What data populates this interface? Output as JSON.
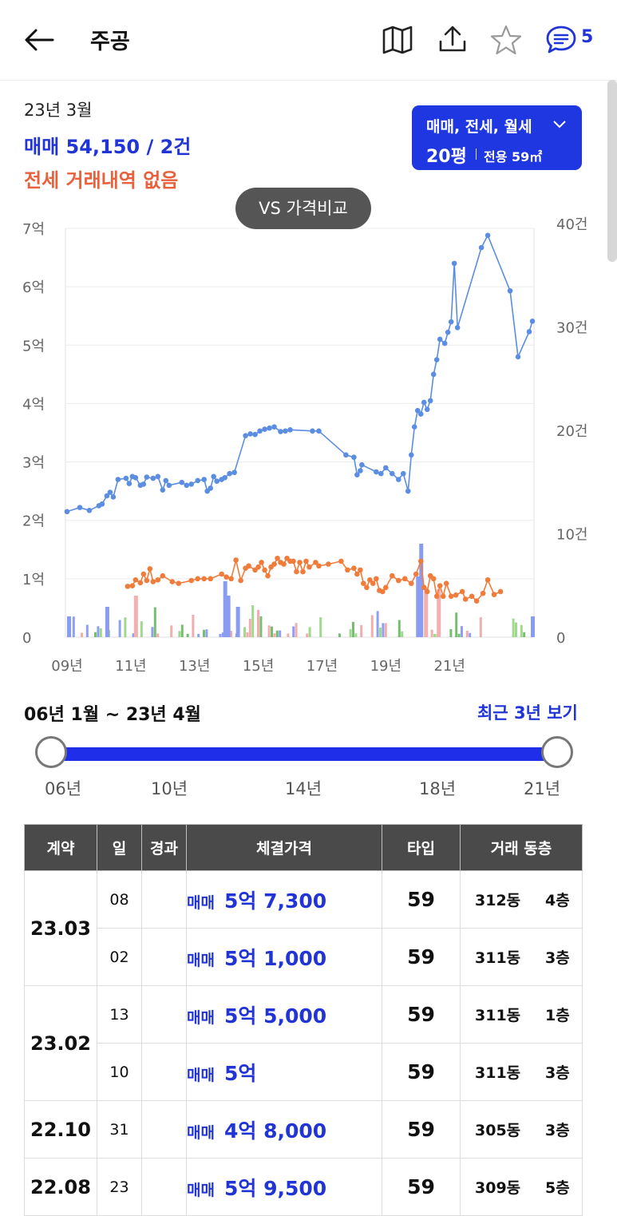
{
  "header": {
    "title": "주공",
    "comment_count": "5",
    "icons": [
      "back-arrow-icon",
      "map-icon",
      "share-icon",
      "star-icon",
      "chat-icon"
    ]
  },
  "summary": {
    "date": "23년 3월",
    "sale": "매매 54,150 / 2건",
    "jeonse": "전세 거래내역 없음"
  },
  "filter": {
    "deal_types": "매매, 전세, 월세",
    "size": "20평",
    "area": "전용 59㎡"
  },
  "vs_button": "VS 가격비교",
  "chart_data": {
    "type": "line",
    "x_ticks": [
      "09년",
      "11년",
      "13년",
      "15년",
      "17년",
      "19년",
      "21년"
    ],
    "y_left_ticks": [
      "0",
      "1억",
      "2억",
      "3억",
      "4억",
      "5억",
      "6억",
      "7억"
    ],
    "y_right_ticks": [
      "0",
      "10건",
      "20건",
      "30건",
      "40건"
    ],
    "ylim_left": [
      0,
      7
    ],
    "ylim_right": [
      0,
      40
    ],
    "grid": true,
    "series": [
      {
        "color": "#5b8de0",
        "points": [
          [
            2009.0,
            2.15
          ],
          [
            2009.4,
            2.22
          ],
          [
            2009.7,
            2.17
          ],
          [
            2010.0,
            2.25
          ],
          [
            2010.1,
            2.28
          ],
          [
            2010.25,
            2.42
          ],
          [
            2010.35,
            2.48
          ],
          [
            2010.45,
            2.4
          ],
          [
            2010.6,
            2.7
          ],
          [
            2010.85,
            2.72
          ],
          [
            2010.95,
            2.63
          ],
          [
            2011.05,
            2.75
          ],
          [
            2011.15,
            2.73
          ],
          [
            2011.3,
            2.6
          ],
          [
            2011.4,
            2.62
          ],
          [
            2011.5,
            2.74
          ],
          [
            2011.7,
            2.72
          ],
          [
            2011.85,
            2.75
          ],
          [
            2012.0,
            2.52
          ],
          [
            2012.1,
            2.68
          ],
          [
            2012.2,
            2.6
          ],
          [
            2012.6,
            2.65
          ],
          [
            2012.75,
            2.6
          ],
          [
            2012.9,
            2.62
          ],
          [
            2013.1,
            2.68
          ],
          [
            2013.3,
            2.7
          ],
          [
            2013.4,
            2.5
          ],
          [
            2013.5,
            2.55
          ],
          [
            2013.6,
            2.75
          ],
          [
            2013.7,
            2.67
          ],
          [
            2013.85,
            2.7
          ],
          [
            2013.95,
            2.73
          ],
          [
            2014.1,
            2.8
          ],
          [
            2014.25,
            2.82
          ],
          [
            2014.6,
            3.45
          ],
          [
            2014.75,
            3.48
          ],
          [
            2014.9,
            3.47
          ],
          [
            2015.05,
            3.53
          ],
          [
            2015.2,
            3.56
          ],
          [
            2015.35,
            3.58
          ],
          [
            2015.5,
            3.6
          ],
          [
            2015.7,
            3.52
          ],
          [
            2015.85,
            3.53
          ],
          [
            2016.0,
            3.55
          ],
          [
            2016.7,
            3.53
          ],
          [
            2016.9,
            3.53
          ],
          [
            2017.75,
            3.12
          ],
          [
            2018.0,
            3.08
          ],
          [
            2018.1,
            2.78
          ],
          [
            2018.2,
            2.85
          ],
          [
            2018.25,
            2.95
          ],
          [
            2018.7,
            2.83
          ],
          [
            2018.85,
            2.8
          ],
          [
            2019.0,
            2.9
          ],
          [
            2019.2,
            2.8
          ],
          [
            2019.4,
            2.7
          ],
          [
            2019.55,
            2.8
          ],
          [
            2019.7,
            2.5
          ],
          [
            2019.8,
            3.12
          ],
          [
            2019.9,
            3.6
          ],
          [
            2020.0,
            3.88
          ],
          [
            2020.1,
            3.82
          ],
          [
            2020.2,
            4.02
          ],
          [
            2020.3,
            3.9
          ],
          [
            2020.4,
            4.05
          ],
          [
            2020.5,
            4.5
          ],
          [
            2020.6,
            4.75
          ],
          [
            2020.7,
            5.1
          ],
          [
            2020.85,
            5.03
          ],
          [
            2020.95,
            5.22
          ],
          [
            2021.05,
            5.4
          ],
          [
            2021.15,
            6.4
          ],
          [
            2021.25,
            5.3
          ],
          [
            2022.0,
            6.67
          ],
          [
            2022.2,
            6.88
          ],
          [
            2022.9,
            5.93
          ],
          [
            2023.15,
            4.8
          ],
          [
            2023.5,
            5.23
          ],
          [
            2023.6,
            5.41
          ]
        ]
      },
      {
        "color": "#f07c3c",
        "points": [
          [
            2010.9,
            0.87
          ],
          [
            2011.05,
            0.88
          ],
          [
            2011.15,
            0.98
          ],
          [
            2011.3,
            0.93
          ],
          [
            2011.4,
            1.08
          ],
          [
            2011.5,
            0.97
          ],
          [
            2011.6,
            1.17
          ],
          [
            2011.7,
            0.95
          ],
          [
            2011.85,
            0.98
          ],
          [
            2012.0,
            1.05
          ],
          [
            2012.3,
            0.95
          ],
          [
            2012.5,
            0.92
          ],
          [
            2012.9,
            0.97
          ],
          [
            2013.1,
            1.0
          ],
          [
            2013.3,
            1.0
          ],
          [
            2013.5,
            1.0
          ],
          [
            2013.85,
            1.08
          ],
          [
            2014.0,
            1.03
          ],
          [
            2014.15,
            1.0
          ],
          [
            2014.3,
            1.32
          ],
          [
            2014.45,
            0.97
          ],
          [
            2014.6,
            1.18
          ],
          [
            2014.7,
            1.22
          ],
          [
            2014.9,
            1.15
          ],
          [
            2015.0,
            1.2
          ],
          [
            2015.1,
            1.28
          ],
          [
            2015.2,
            1.15
          ],
          [
            2015.3,
            1.05
          ],
          [
            2015.4,
            1.2
          ],
          [
            2015.5,
            1.25
          ],
          [
            2015.6,
            1.35
          ],
          [
            2015.7,
            1.28
          ],
          [
            2015.8,
            1.25
          ],
          [
            2015.9,
            1.35
          ],
          [
            2016.0,
            1.3
          ],
          [
            2016.1,
            1.3
          ],
          [
            2016.2,
            1.12
          ],
          [
            2016.3,
            1.28
          ],
          [
            2016.4,
            1.12
          ],
          [
            2016.5,
            1.3
          ],
          [
            2016.6,
            1.2
          ],
          [
            2016.8,
            1.28
          ],
          [
            2016.9,
            1.22
          ],
          [
            2017.2,
            1.25
          ],
          [
            2017.6,
            1.3
          ],
          [
            2017.8,
            1.15
          ],
          [
            2018.0,
            1.18
          ],
          [
            2018.1,
            1.08
          ],
          [
            2018.2,
            1.15
          ],
          [
            2018.3,
            0.92
          ],
          [
            2018.4,
            0.85
          ],
          [
            2018.5,
            0.98
          ],
          [
            2018.6,
            0.92
          ],
          [
            2018.7,
            1.0
          ],
          [
            2018.8,
            0.8
          ],
          [
            2018.9,
            0.78
          ],
          [
            2019.0,
            0.85
          ],
          [
            2019.2,
            1.05
          ],
          [
            2019.4,
            0.97
          ],
          [
            2019.6,
            1.0
          ],
          [
            2019.8,
            0.92
          ],
          [
            2019.95,
            1.08
          ],
          [
            2020.1,
            1.3
          ],
          [
            2020.2,
            0.85
          ],
          [
            2020.3,
            0.78
          ],
          [
            2020.4,
            1.05
          ],
          [
            2020.5,
            1.0
          ],
          [
            2020.6,
            0.7
          ],
          [
            2020.7,
            0.88
          ],
          [
            2020.8,
            0.7
          ],
          [
            2020.9,
            0.92
          ],
          [
            2021.05,
            0.7
          ],
          [
            2021.2,
            0.72
          ],
          [
            2021.4,
            0.78
          ],
          [
            2021.5,
            0.65
          ],
          [
            2021.7,
            0.7
          ],
          [
            2021.85,
            0.62
          ],
          [
            2022.05,
            0.75
          ],
          [
            2022.2,
            0.98
          ],
          [
            2022.4,
            0.73
          ],
          [
            2022.6,
            0.78
          ]
        ]
      }
    ]
  },
  "range": {
    "label": "06년 1월 ~ 23년 4월",
    "recent_button": "최근 3년 보기",
    "ticks": [
      "06년",
      "10년",
      "14년",
      "18년",
      "21년"
    ]
  },
  "table": {
    "headers": [
      "계약",
      "일",
      "경과",
      "체결가격",
      "타입",
      "거래 동층"
    ],
    "rows": [
      {
        "month": "23.03",
        "day": "08",
        "elapsed": "",
        "type": "매매",
        "price": "5억 7,300",
        "ptype": "59",
        "bldg": "312동",
        "floor": "4층"
      },
      {
        "month": "",
        "day": "02",
        "elapsed": "",
        "type": "매매",
        "price": "5억 1,000",
        "ptype": "59",
        "bldg": "311동",
        "floor": "3층"
      },
      {
        "month": "23.02",
        "day": "13",
        "elapsed": "",
        "type": "매매",
        "price": "5억 5,000",
        "ptype": "59",
        "bldg": "311동",
        "floor": "1층"
      },
      {
        "month": "",
        "day": "10",
        "elapsed": "",
        "type": "매매",
        "price": "5억",
        "ptype": "59",
        "bldg": "311동",
        "floor": "3층"
      },
      {
        "month": "22.10",
        "day": "31",
        "elapsed": "",
        "type": "매매",
        "price": "4억 8,000",
        "ptype": "59",
        "bldg": "305동",
        "floor": "3층"
      },
      {
        "month": "22.08",
        "day": "23",
        "elapsed": "",
        "type": "매매",
        "price": "5억 9,500",
        "ptype": "59",
        "bldg": "309동",
        "floor": "5층"
      }
    ]
  }
}
